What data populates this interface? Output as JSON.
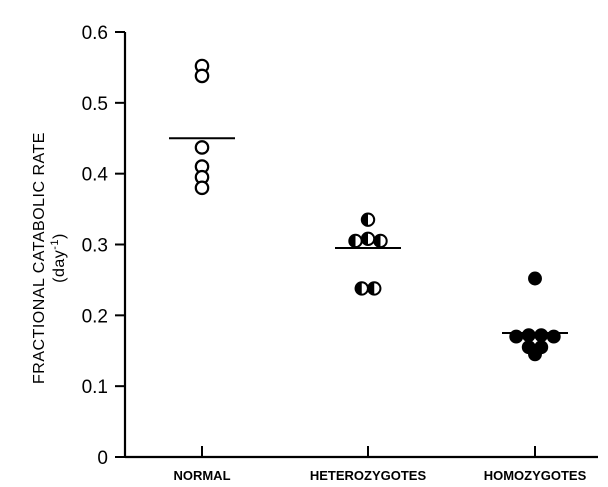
{
  "chart_data": {
    "type": "scatter",
    "ylabel": "FRACTIONAL CATABOLIC RATE",
    "ylabel_unit_prefix": "(day",
    "ylabel_unit_exp": "-1",
    "ylabel_unit_suffix": ")",
    "ylim": [
      0,
      0.6
    ],
    "yticks": [
      "0",
      "0.1",
      "0.2",
      "0.3",
      "0.4",
      "0.5",
      "0.6"
    ],
    "categories": [
      "NORMAL",
      "HETEROZYGOTES",
      "HOMOZYGOTES"
    ],
    "grid": false,
    "series": [
      {
        "marker": "open-circle",
        "category": "NORMAL",
        "mean": 0.45,
        "points": [
          {
            "dx": 0,
            "y": 0.552
          },
          {
            "dx": 0,
            "y": 0.538
          },
          {
            "dx": 0,
            "y": 0.437
          },
          {
            "dx": 0,
            "y": 0.41
          },
          {
            "dx": 0,
            "y": 0.395
          },
          {
            "dx": 0,
            "y": 0.38
          }
        ]
      },
      {
        "marker": "half-filled-circle",
        "category": "HETEROZYGOTES",
        "mean": 0.295,
        "points": [
          {
            "dx": 0,
            "y": 0.335
          },
          {
            "dx": -1,
            "y": 0.305
          },
          {
            "dx": 0,
            "y": 0.308
          },
          {
            "dx": 1,
            "y": 0.305
          },
          {
            "dx": -0.5,
            "y": 0.238
          },
          {
            "dx": 0.5,
            "y": 0.238
          }
        ]
      },
      {
        "marker": "filled-circle",
        "category": "HOMOZYGOTES",
        "mean": 0.175,
        "points": [
          {
            "dx": 0,
            "y": 0.252
          },
          {
            "dx": -1.5,
            "y": 0.17
          },
          {
            "dx": -0.5,
            "y": 0.172
          },
          {
            "dx": 0.5,
            "y": 0.172
          },
          {
            "dx": 1.5,
            "y": 0.17
          },
          {
            "dx": -0.5,
            "y": 0.155
          },
          {
            "dx": 0.5,
            "y": 0.155
          },
          {
            "dx": 0,
            "y": 0.145
          }
        ]
      }
    ]
  }
}
